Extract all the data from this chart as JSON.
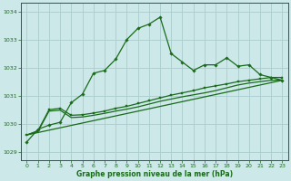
{
  "background_color": "#cce8e8",
  "grid_color": "#aacccc",
  "line_color": "#1a6b1a",
  "xlabel": "Graphe pression niveau de la mer (hPa)",
  "ylim": [
    1028.7,
    1034.3
  ],
  "xlim": [
    -0.5,
    23.5
  ],
  "yticks": [
    1029,
    1030,
    1031,
    1032,
    1033,
    1034
  ],
  "xticks": [
    0,
    1,
    2,
    3,
    4,
    5,
    6,
    7,
    8,
    9,
    10,
    11,
    12,
    13,
    14,
    15,
    16,
    17,
    18,
    19,
    20,
    21,
    22,
    23
  ],
  "series1_x": [
    0,
    1,
    2,
    3,
    4,
    5,
    6,
    7,
    8,
    9,
    10,
    11,
    12,
    13,
    14,
    15,
    16,
    17,
    18,
    19,
    20,
    21,
    22,
    23
  ],
  "series1_y": [
    1029.35,
    1029.8,
    1029.95,
    1030.05,
    1030.75,
    1031.05,
    1031.8,
    1031.9,
    1032.3,
    1033.0,
    1033.4,
    1033.55,
    1033.8,
    1032.5,
    1032.2,
    1031.9,
    1032.1,
    1032.1,
    1032.35,
    1032.05,
    1032.1,
    1031.75,
    1031.65,
    1031.55
  ],
  "series2_x": [
    0,
    1,
    2,
    3,
    4,
    5,
    6,
    7,
    8,
    9,
    10,
    11,
    12,
    13,
    14,
    15,
    16,
    17,
    18,
    19,
    20,
    21,
    22,
    23
  ],
  "series2_y": [
    1029.6,
    1029.75,
    1030.5,
    1030.55,
    1030.3,
    1030.32,
    1030.38,
    1030.45,
    1030.55,
    1030.62,
    1030.72,
    1030.82,
    1030.92,
    1031.02,
    1031.1,
    1031.18,
    1031.28,
    1031.35,
    1031.42,
    1031.5,
    1031.55,
    1031.6,
    1031.65,
    1031.65
  ],
  "series3_x": [
    0,
    1,
    2,
    3,
    4,
    5,
    6,
    7,
    8,
    9,
    10,
    11,
    12,
    13,
    14,
    15,
    16,
    17,
    18,
    19,
    20,
    21,
    22,
    23
  ],
  "series3_y": [
    1029.6,
    1029.72,
    1030.45,
    1030.48,
    1030.22,
    1030.24,
    1030.3,
    1030.37,
    1030.45,
    1030.52,
    1030.6,
    1030.7,
    1030.8,
    1030.88,
    1030.96,
    1031.03,
    1031.1,
    1031.18,
    1031.28,
    1031.38,
    1031.45,
    1031.5,
    1031.55,
    1031.55
  ],
  "series4_x": [
    0,
    23
  ],
  "series4_y": [
    1029.6,
    1031.55
  ]
}
